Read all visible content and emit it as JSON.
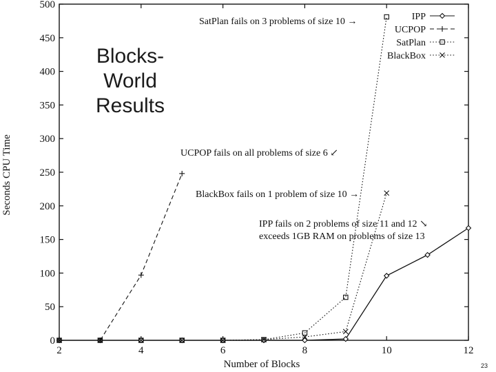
{
  "slide": {
    "title_lines": [
      "Blocks-",
      "World",
      "Results"
    ],
    "page_number": "23"
  },
  "chart_data": {
    "type": "line",
    "title": "",
    "xlabel": "Number of Blocks",
    "ylabel": "Seconds CPU Time",
    "xlim": [
      2,
      12
    ],
    "ylim": [
      0,
      500
    ],
    "x_ticks": [
      2,
      4,
      6,
      8,
      10,
      12
    ],
    "y_ticks": [
      0,
      50,
      100,
      150,
      200,
      250,
      300,
      350,
      400,
      450,
      500
    ],
    "grid": false,
    "legend_position": "top-right",
    "series": [
      {
        "name": "IPP",
        "line": "solid",
        "marker": "diamond",
        "color": "#111111",
        "x": [
          2,
          3,
          4,
          5,
          6,
          7,
          8,
          9,
          10,
          11,
          12
        ],
        "y": [
          0,
          0,
          0,
          0,
          0,
          0,
          0,
          2,
          96,
          127,
          167
        ]
      },
      {
        "name": "UCPOP",
        "line": "dashed",
        "marker": "plus",
        "color": "#111111",
        "x": [
          2,
          3,
          4,
          5
        ],
        "y": [
          0,
          0,
          97,
          248
        ]
      },
      {
        "name": "SatPlan",
        "line": "dotted",
        "marker": "square",
        "color": "#111111",
        "x": [
          2,
          3,
          4,
          5,
          6,
          7,
          8,
          9,
          10
        ],
        "y": [
          0,
          0,
          0,
          0,
          0,
          1,
          11,
          64,
          481
        ]
      },
      {
        "name": "BlackBox",
        "line": "dotted",
        "marker": "x",
        "color": "#111111",
        "x": [
          2,
          3,
          4,
          5,
          6,
          7,
          8,
          9,
          10
        ],
        "y": [
          0,
          0,
          0,
          0,
          0,
          1,
          5,
          13,
          219
        ]
      }
    ],
    "annotations": [
      {
        "text": "SatPlan fails on 3 problems of size 10",
        "arrow": "→",
        "point": [
          10,
          481
        ]
      },
      {
        "text": "UCPOP fails on all problems of size 6",
        "arrow": "↙",
        "point": [
          5,
          248
        ]
      },
      {
        "text": "BlackBox fails on 1 problem of size 10",
        "arrow": "→",
        "point": [
          10,
          219
        ]
      },
      {
        "text": "IPP fails on 2 problems of size 11 and 12",
        "arrow": "↘",
        "point": [
          12,
          167
        ]
      },
      {
        "text": "exceeds 1GB RAM on problems of size 13",
        "arrow": "",
        "point": [
          12,
          167
        ]
      }
    ]
  }
}
